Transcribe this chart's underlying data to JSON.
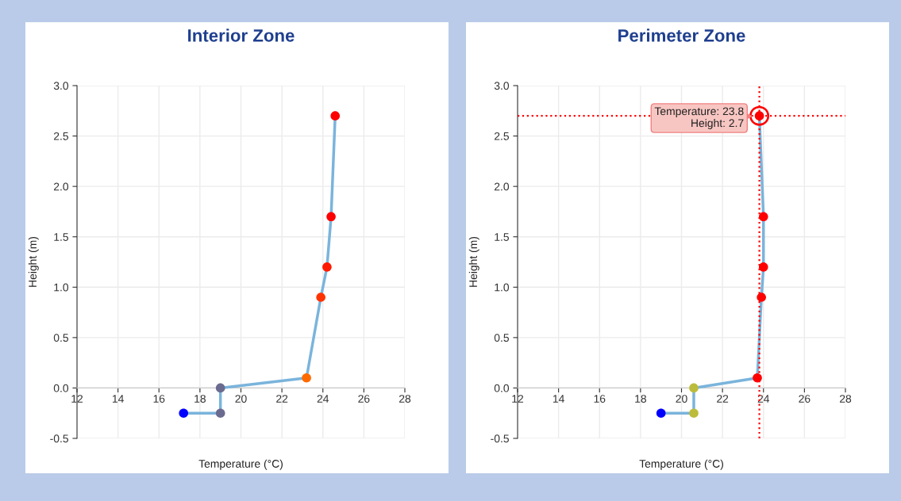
{
  "chart_data": [
    {
      "type": "line",
      "title": "Interior Zone",
      "xlabel": "Temperature (°C)",
      "ylabel": "Height (m)",
      "series": [
        {
          "color": "#7ab4dc",
          "x": [
            17.2,
            19,
            19,
            23.2,
            23.9,
            24.2,
            24.4,
            24.6
          ],
          "values": [
            -0.25,
            -0.25,
            0,
            0.1,
            0.9,
            1.2,
            1.7,
            2.7
          ],
          "colors": [
            "#0000ff",
            "#6b6b8f",
            "#6b6b8f",
            "#ff6a00",
            "#ff3300",
            "#ff1a00",
            "#ff0000",
            "#ff0000"
          ]
        }
      ],
      "xlim": [
        12,
        28
      ],
      "xticks": [
        12,
        14,
        16,
        18,
        20,
        22,
        24,
        26,
        28
      ],
      "ylim": [
        -0.5,
        3.0
      ],
      "yticks": [
        {
          "value": -0.5,
          "label": "-0.5"
        },
        {
          "value": 0,
          "label": "0.0"
        },
        0.5,
        {
          "value": 1,
          "label": "1.0"
        },
        1.5,
        {
          "value": 2,
          "label": "2.0"
        },
        2.5,
        {
          "value": 3,
          "label": "3.0"
        }
      ],
      "grid": true,
      "marker": "circle",
      "line_style": "solid"
    },
    {
      "type": "line",
      "title": "Perimeter Zone",
      "xlabel": "Temperature (°C)",
      "ylabel": "Height (m)",
      "series": [
        {
          "color": "#7ab4dc",
          "x": [
            19,
            20.6,
            20.6,
            23.7,
            23.9,
            24,
            24,
            23.8
          ],
          "values": [
            -0.25,
            -0.25,
            0,
            0.1,
            0.9,
            1.2,
            1.7,
            2.7
          ],
          "colors": [
            "#0000ff",
            "#bcbc3c",
            "#bcbc3c",
            "#ff0000",
            "#ff0000",
            "#ff0000",
            "#ff0000",
            "#ff0000"
          ]
        }
      ],
      "xlim": [
        12,
        28
      ],
      "xticks": [
        12,
        14,
        16,
        18,
        20,
        22,
        24,
        26,
        28
      ],
      "ylim": [
        -0.5,
        3.0
      ],
      "yticks": [
        {
          "value": -0.5,
          "label": "-0.5"
        },
        {
          "value": 0,
          "label": "0.0"
        },
        0.5,
        {
          "value": 1,
          "label": "1.0"
        },
        1.5,
        {
          "value": 2,
          "label": "2.0"
        },
        2.5,
        {
          "value": 3,
          "label": "3.0"
        }
      ],
      "grid": true,
      "marker": "circle",
      "line_style": "solid",
      "ref_lines": [
        {
          "axis": "x",
          "value": 23.8,
          "color": "#ff0000",
          "line_style": "dotted"
        },
        {
          "axis": "y",
          "value": 2.7,
          "color": "#ff0000",
          "line_style": "dotted"
        }
      ],
      "annotations": [
        {
          "text": "Temperature: 23.8\nHeight: 2.7",
          "x": 23.8,
          "y": 2.7
        }
      ]
    }
  ]
}
